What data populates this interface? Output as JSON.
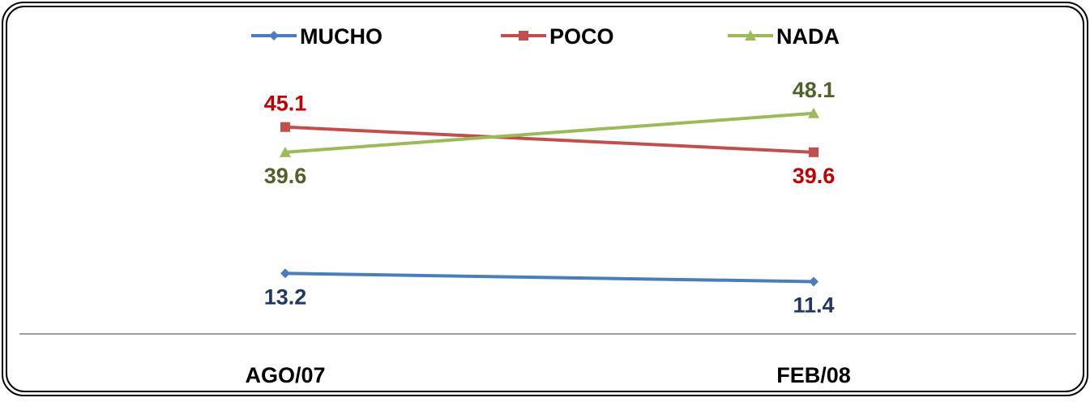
{
  "chart_data": {
    "type": "line",
    "categories": [
      "AGO/07",
      "FEB/08"
    ],
    "series": [
      {
        "name": "MUCHO",
        "values": [
          13.2,
          11.4
        ],
        "color": "#4a7ebb",
        "label_color": "#1f3864",
        "marker": "diamond"
      },
      {
        "name": "POCO",
        "values": [
          45.1,
          39.6
        ],
        "color": "#c0504d",
        "label_color": "#c00000",
        "marker": "square"
      },
      {
        "name": "NADA",
        "values": [
          39.6,
          48.1
        ],
        "color": "#9bbb59",
        "label_color": "#4f6228",
        "marker": "triangle"
      }
    ],
    "title": "",
    "xlabel": "",
    "ylabel": "",
    "ylim": [
      0,
      55
    ],
    "grid": false,
    "legend": "top"
  }
}
